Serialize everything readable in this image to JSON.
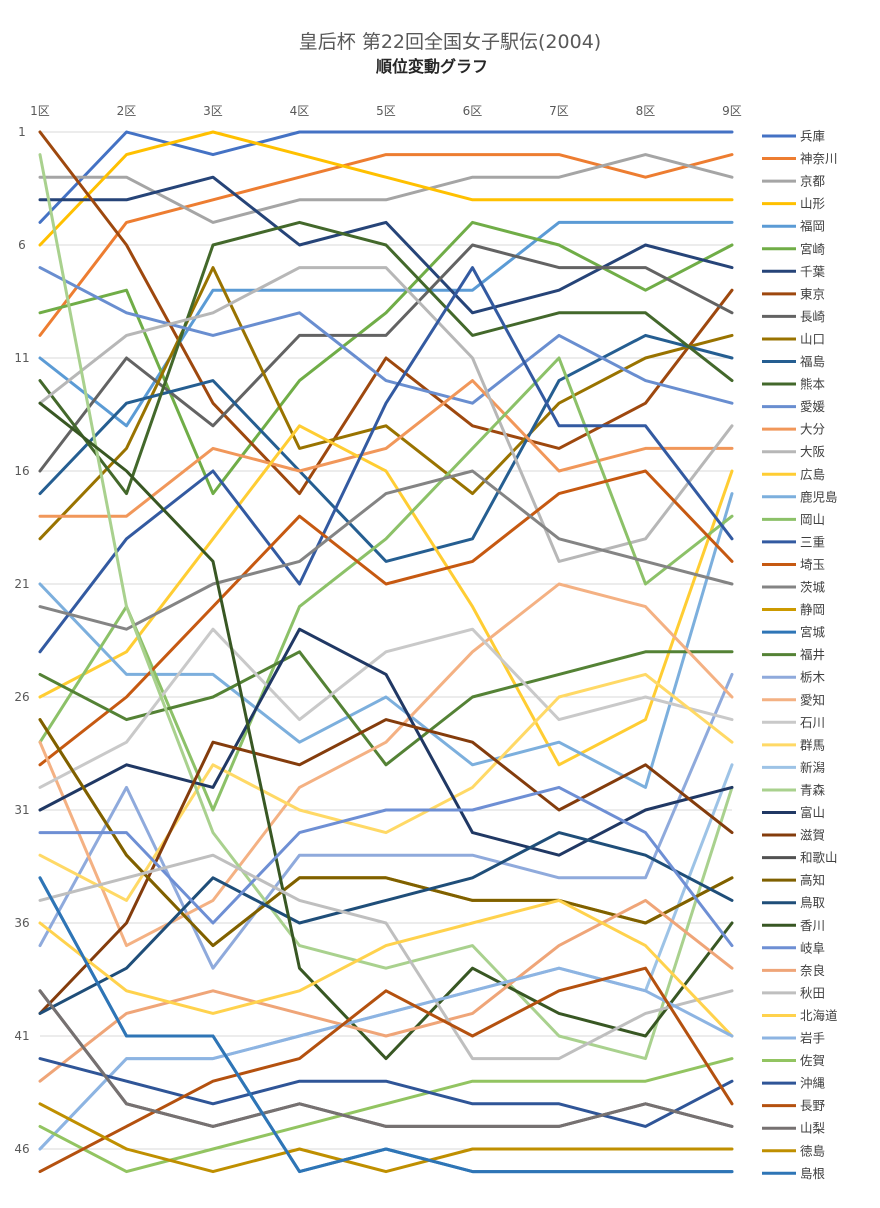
{
  "chart_data": {
    "type": "line",
    "title": "皇后杯 第22回全国女子駅伝(2004)",
    "subtitle": "順位変動グラフ",
    "categories": [
      "1区",
      "2区",
      "3区",
      "4区",
      "5区",
      "6区",
      "7区",
      "8区",
      "9区"
    ],
    "y_ticks": [
      1,
      6,
      11,
      16,
      21,
      26,
      31,
      36,
      41,
      46
    ],
    "ylim": [
      1,
      47
    ],
    "y_reversed": true,
    "grid": true,
    "legend_position": "right",
    "series": [
      {
        "name": "兵庫",
        "color": "#4472C4",
        "values": [
          5,
          1,
          2,
          1,
          1,
          1,
          1,
          1,
          1
        ]
      },
      {
        "name": "神奈川",
        "color": "#ED7D31",
        "values": [
          10,
          5,
          4,
          3,
          2,
          2,
          2,
          3,
          2
        ]
      },
      {
        "name": "京都",
        "color": "#A5A5A5",
        "values": [
          3,
          3,
          5,
          4,
          4,
          3,
          3,
          2,
          3
        ]
      },
      {
        "name": "山形",
        "color": "#FFC000",
        "values": [
          6,
          2,
          1,
          2,
          3,
          4,
          4,
          4,
          4
        ]
      },
      {
        "name": "福岡",
        "color": "#5B9BD5",
        "values": [
          11,
          14,
          8,
          8,
          8,
          8,
          5,
          5,
          5
        ]
      },
      {
        "name": "宮崎",
        "color": "#70AD47",
        "values": [
          9,
          8,
          17,
          12,
          9,
          5,
          6,
          8,
          6
        ]
      },
      {
        "name": "千葉",
        "color": "#264478",
        "values": [
          4,
          4,
          3,
          6,
          5,
          9,
          8,
          6,
          7
        ]
      },
      {
        "name": "東京",
        "color": "#9E480E",
        "values": [
          1,
          6,
          13,
          17,
          11,
          14,
          15,
          13,
          8
        ]
      },
      {
        "name": "長崎",
        "color": "#636363",
        "values": [
          16,
          11,
          14,
          10,
          10,
          6,
          7,
          7,
          9
        ]
      },
      {
        "name": "山口",
        "color": "#997300",
        "values": [
          19,
          15,
          7,
          15,
          14,
          17,
          13,
          11,
          10
        ]
      },
      {
        "name": "福島",
        "color": "#255E91",
        "values": [
          17,
          13,
          12,
          16,
          20,
          19,
          12,
          10,
          11
        ]
      },
      {
        "name": "熊本",
        "color": "#43682B",
        "values": [
          12,
          17,
          6,
          5,
          6,
          10,
          9,
          9,
          12
        ]
      },
      {
        "name": "愛媛",
        "color": "#698ED0",
        "values": [
          7,
          9,
          10,
          9,
          12,
          13,
          10,
          12,
          13
        ]
      },
      {
        "name": "大分",
        "color": "#F1975A",
        "values": [
          18,
          18,
          15,
          16,
          15,
          12,
          16,
          15,
          15
        ]
      },
      {
        "name": "大阪",
        "color": "#B7B7B7",
        "values": [
          13,
          10,
          9,
          7,
          7,
          11,
          20,
          19,
          14
        ]
      },
      {
        "name": "広島",
        "color": "#FFCD33",
        "values": [
          26,
          24,
          19,
          14,
          16,
          22,
          29,
          27,
          16
        ]
      },
      {
        "name": "鹿児島",
        "color": "#7CAFDD",
        "values": [
          21,
          25,
          25,
          28,
          26,
          29,
          28,
          30,
          17
        ]
      },
      {
        "name": "岡山",
        "color": "#8CC168",
        "values": [
          28,
          22,
          31,
          22,
          19,
          15,
          11,
          21,
          18
        ]
      },
      {
        "name": "三重",
        "color": "#335AA1",
        "values": [
          24,
          19,
          16,
          21,
          13,
          7,
          14,
          14,
          19
        ]
      },
      {
        "name": "埼玉",
        "color": "#C65911",
        "values": [
          29,
          26,
          22,
          18,
          21,
          20,
          17,
          16,
          20
        ]
      },
      {
        "name": "茨城",
        "color": "#848484",
        "values": [
          22,
          23,
          21,
          20,
          17,
          16,
          19,
          20,
          21
        ]
      },
      {
        "name": "静岡",
        "color": "#CC9A00",
        "values": [
          27,
          33,
          37,
          34,
          34,
          35,
          35,
          36,
          34
        ]
      },
      {
        "name": "宮城",
        "color": "#2E75B6",
        "values": [
          34,
          41,
          41,
          47,
          46,
          47,
          47,
          47,
          47
        ]
      },
      {
        "name": "福井",
        "color": "#548235",
        "values": [
          25,
          27,
          26,
          24,
          29,
          26,
          25,
          24,
          24
        ]
      },
      {
        "name": "栃木",
        "color": "#8FAADC",
        "values": [
          37,
          30,
          38,
          33,
          33,
          33,
          34,
          34,
          25
        ]
      },
      {
        "name": "愛知",
        "color": "#F4B183",
        "values": [
          28,
          37,
          35,
          30,
          28,
          24,
          21,
          22,
          26
        ]
      },
      {
        "name": "石川",
        "color": "#C9C9C9",
        "values": [
          30,
          28,
          23,
          27,
          24,
          23,
          27,
          26,
          27
        ]
      },
      {
        "name": "群馬",
        "color": "#FFD966",
        "values": [
          33,
          35,
          29,
          31,
          32,
          30,
          26,
          25,
          28
        ]
      },
      {
        "name": "新潟",
        "color": "#9DC3E6",
        "values": [
          46,
          42,
          42,
          41,
          40,
          39,
          38,
          39,
          29
        ]
      },
      {
        "name": "青森",
        "color": "#A9D18E",
        "values": [
          2,
          22,
          32,
          37,
          38,
          37,
          41,
          42,
          30
        ]
      },
      {
        "name": "富山",
        "color": "#203864",
        "values": [
          31,
          29,
          30,
          23,
          25,
          32,
          33,
          31,
          30
        ]
      },
      {
        "name": "滋賀",
        "color": "#843C0C",
        "values": [
          40,
          36,
          28,
          29,
          27,
          28,
          31,
          29,
          32
        ]
      },
      {
        "name": "和歌山",
        "color": "#525252",
        "values": [
          39,
          44,
          45,
          44,
          45,
          45,
          45,
          44,
          45
        ]
      },
      {
        "name": "高知",
        "color": "#7F6000",
        "values": [
          27,
          33,
          37,
          34,
          34,
          35,
          35,
          36,
          34
        ]
      },
      {
        "name": "鳥取",
        "color": "#1F4E79",
        "values": [
          40,
          38,
          34,
          36,
          35,
          34,
          32,
          33,
          35
        ]
      },
      {
        "name": "香川",
        "color": "#385723",
        "values": [
          13,
          16,
          20,
          38,
          42,
          38,
          40,
          41,
          36
        ]
      },
      {
        "name": "岐阜",
        "color": "#6E8FD4",
        "values": [
          32,
          32,
          36,
          32,
          31,
          31,
          30,
          32,
          37
        ]
      },
      {
        "name": "奈良",
        "color": "#EFA578",
        "values": [
          43,
          40,
          39,
          40,
          41,
          40,
          37,
          35,
          38
        ]
      },
      {
        "name": "秋田",
        "color": "#BFBFBF",
        "values": [
          35,
          34,
          33,
          35,
          36,
          42,
          42,
          40,
          39
        ]
      },
      {
        "name": "北海道",
        "color": "#FFD24D",
        "values": [
          36,
          39,
          40,
          39,
          37,
          36,
          35,
          37,
          41
        ]
      },
      {
        "name": "岩手",
        "color": "#8DB4E2",
        "values": [
          46,
          42,
          42,
          41,
          40,
          39,
          38,
          39,
          41
        ]
      },
      {
        "name": "佐賀",
        "color": "#92C461",
        "values": [
          45,
          47,
          46,
          45,
          44,
          43,
          43,
          43,
          42
        ]
      },
      {
        "name": "沖縄",
        "color": "#2F5597",
        "values": [
          42,
          43,
          44,
          43,
          43,
          44,
          44,
          45,
          43
        ]
      },
      {
        "name": "長野",
        "color": "#B4510F",
        "values": [
          47,
          45,
          43,
          42,
          39,
          41,
          39,
          38,
          44
        ]
      },
      {
        "name": "山梨",
        "color": "#767171",
        "values": [
          39,
          44,
          45,
          44,
          45,
          45,
          45,
          44,
          45
        ]
      },
      {
        "name": "徳島",
        "color": "#BF8F00",
        "values": [
          44,
          46,
          47,
          46,
          47,
          46,
          46,
          46,
          46
        ]
      },
      {
        "name": "島根",
        "color": "#2E75B6",
        "values": [
          34,
          41,
          41,
          47,
          46,
          47,
          47,
          47,
          47
        ]
      }
    ]
  }
}
